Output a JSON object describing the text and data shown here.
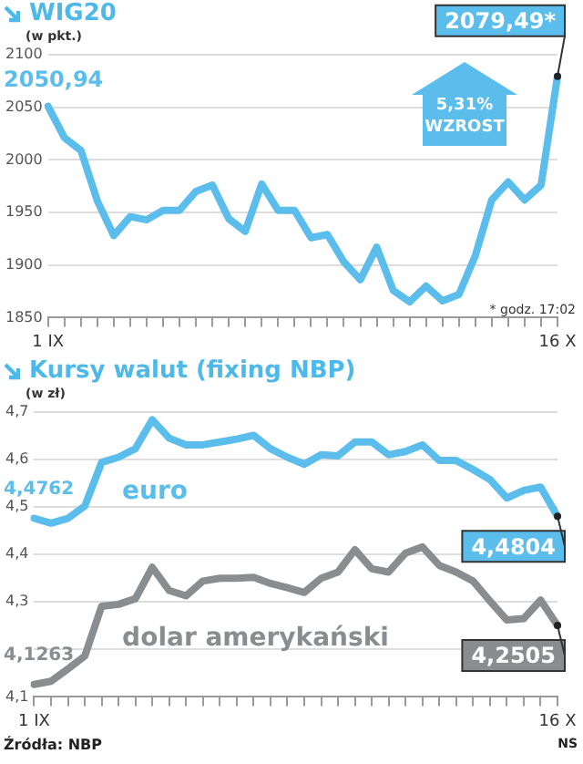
{
  "chart_data": [
    {
      "type": "line",
      "title": "WIG20",
      "ylabel": "(w pkt.)",
      "categories": [
        "1 IX",
        null,
        null,
        null,
        null,
        null,
        null,
        null,
        null,
        null,
        null,
        null,
        null,
        null,
        null,
        null,
        null,
        null,
        null,
        null,
        null,
        null,
        null,
        null,
        null,
        null,
        null,
        null,
        null,
        null,
        null,
        "16 X"
      ],
      "series": [
        {
          "color": "#5bbdec",
          "values": [
            2050.94,
            2021,
            2009,
            1961,
            1928,
            1946,
            1943,
            1952,
            1952,
            1970,
            1976,
            1944,
            1932,
            1977,
            1952,
            1952,
            1926,
            1929,
            1903,
            1886,
            1917,
            1876,
            1865,
            1880,
            1866,
            1872,
            1909,
            1962,
            1979,
            1962,
            1976,
            2079.49
          ],
          "value_labels": [
            "2050,94",
            null,
            null,
            null,
            null,
            null,
            null,
            null,
            null,
            null,
            null,
            null,
            null,
            null,
            null,
            null,
            null,
            null,
            null,
            null,
            null,
            null,
            null,
            null,
            null,
            null,
            null,
            null,
            null,
            null,
            null,
            "2079,49*"
          ]
        }
      ],
      "ylim": [
        1850,
        2100
      ],
      "yticks": [
        1850,
        1900,
        1950,
        2000,
        2050,
        2100
      ],
      "grid": "y",
      "marker": "none",
      "annotations": [
        "5,31% WZROST",
        "* godz. 17:02"
      ]
    },
    {
      "type": "line",
      "title": "Kursy walut (fixing NBP)",
      "ylabel": "(w zł)",
      "categories": [
        "1 IX",
        null,
        null,
        null,
        null,
        null,
        null,
        null,
        null,
        null,
        null,
        null,
        null,
        null,
        null,
        null,
        null,
        null,
        null,
        null,
        null,
        null,
        null,
        null,
        null,
        null,
        null,
        null,
        null,
        null,
        null,
        "16 X"
      ],
      "series": [
        {
          "name": "euro",
          "color": "#5bbdec",
          "values": [
            4.4762,
            4.466,
            4.476,
            4.502,
            4.594,
            4.605,
            4.623,
            4.684,
            4.645,
            4.631,
            4.631,
            4.637,
            4.643,
            4.651,
            4.623,
            4.605,
            4.59,
            4.61,
            4.608,
            4.637,
            4.637,
            4.61,
            4.617,
            4.631,
            4.598,
            4.598,
            4.579,
            4.558,
            4.519,
            4.535,
            4.542,
            4.4804
          ],
          "value_labels": [
            "4,4762",
            null,
            null,
            null,
            null,
            null,
            null,
            null,
            null,
            null,
            null,
            null,
            null,
            null,
            null,
            null,
            null,
            null,
            null,
            null,
            null,
            null,
            null,
            null,
            null,
            null,
            null,
            null,
            null,
            null,
            null,
            "4,4804"
          ]
        },
        {
          "name": "dolar amerykański",
          "color": "#8a8d8f",
          "values": [
            4.1263,
            4.133,
            4.159,
            4.186,
            4.291,
            4.295,
            4.307,
            4.373,
            4.324,
            4.313,
            4.344,
            4.35,
            4.35,
            4.352,
            4.339,
            4.33,
            4.32,
            4.35,
            4.363,
            4.41,
            4.37,
            4.363,
            4.403,
            4.416,
            4.377,
            4.363,
            4.344,
            4.302,
            4.262,
            4.265,
            4.304,
            4.2505
          ],
          "value_labels": [
            "4,1263",
            null,
            null,
            null,
            null,
            null,
            null,
            null,
            null,
            null,
            null,
            null,
            null,
            null,
            null,
            null,
            null,
            null,
            null,
            null,
            null,
            null,
            null,
            null,
            null,
            null,
            null,
            null,
            null,
            null,
            null,
            "4,2505"
          ]
        }
      ],
      "ylim": [
        4.1,
        4.7
      ],
      "yticks": [
        {
          "value": 4.1,
          "label": "4,1"
        },
        {
          "value": 4.2,
          "label": null
        },
        {
          "value": 4.3,
          "label": "4,3"
        },
        {
          "value": 4.4,
          "label": "4,4"
        },
        {
          "value": 4.5,
          "label": "4,5"
        },
        {
          "value": 4.6,
          "label": "4,6"
        },
        {
          "value": 4.7,
          "label": "4,7"
        }
      ],
      "grid": "y",
      "marker": "none",
      "annotations": [
        "Źródła: NBP",
        "NS"
      ]
    }
  ]
}
